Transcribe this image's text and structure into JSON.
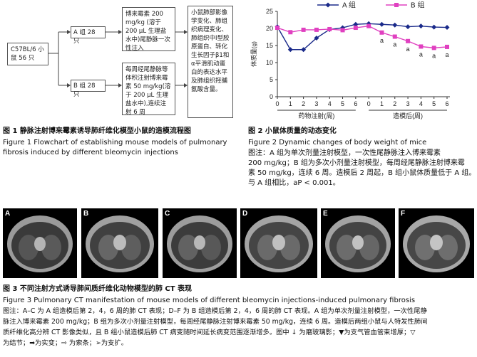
{
  "flowchart": {
    "start": "C57BL/6 小鼠 56 只",
    "group_a": "A 组 28 只",
    "group_b": "B 组 28 只",
    "a_desc": "博来霉素 200 mg/kg (溶于 200 μL 生理盐水中)尾静脉一次性注入",
    "b_desc": "每周经尾静脉等体积注射博来霉素 50 mg/kg(溶于 200 μL 生理盐水中),连续注射 6 周",
    "outcome": "小鼠肺部影像学变化、肺组织病理变化、肺组织中Ⅰ型胶原蛋白、转化生长因子β1和α平滑肌动蛋白的表达水平及肺组织羟脯氨酸含量。"
  },
  "fig1": {
    "cn": "图 1  静脉注射博来霉素诱导肺纤维化模型小鼠的造模流程图",
    "en1": "Figure 1   Flowchart of establishing mouse models of pulmonary",
    "en2": "fibrosis induced by different bleomycin injections"
  },
  "chart_data": {
    "type": "line",
    "x": [
      "0",
      "1",
      "2",
      "3",
      "4",
      "5",
      "6",
      "0",
      "1",
      "2",
      "3",
      "4",
      "5",
      "6"
    ],
    "ylim": [
      0,
      25
    ],
    "yticks": [
      "0",
      "5",
      "10",
      "15",
      "20",
      "25"
    ],
    "ylabel": "体质量(g)",
    "xgroup1": "药物注射(周)",
    "xgroup2": "造模后(周)",
    "series": [
      {
        "name": "A 组",
        "color": "#1a2a8a",
        "marker": "diamond",
        "values": [
          20.5,
          13.8,
          13.8,
          17.2,
          19.7,
          20.2,
          21.2,
          21.4,
          21.2,
          21.0,
          20.5,
          20.7,
          20.4,
          20.3
        ]
      },
      {
        "name": "B 组",
        "color": "#e040c0",
        "marker": "square",
        "values": [
          20.2,
          18.9,
          19.6,
          19.6,
          19.8,
          19.5,
          20.2,
          20.7,
          18.8,
          17.6,
          16.3,
          14.7,
          14.3,
          14.6
        ]
      }
    ],
    "annotations": [
      "a",
      "a",
      "a",
      "a",
      "a",
      "a"
    ],
    "annotation_x_index": [
      8,
      9,
      10,
      11,
      12,
      13
    ]
  },
  "fig2": {
    "cn": "图 2  小鼠体质量的动态变化",
    "en": "Figure 2   Dynamic changes of body weight of mice",
    "note1": "图注：A 组为单次剂量注射模型，一次性尾静脉注入博来霉素",
    "note2": "200 mg/kg；B 组为多次小剂量注射模型，每周经尾静脉注射博来霉",
    "note3": "素 50 mg/kg，连续 6 周。造模后 2 周起，B 组小鼠体质量低于 A 组。",
    "note4": "与 A 组相比，aP < 0.001。"
  },
  "ct_panels": [
    "A",
    "B",
    "C",
    "D",
    "E",
    "F"
  ],
  "fig3": {
    "cn": "图 3  不同注射方式诱导肺间质纤维化动物模型的肺 CT 表现",
    "en": "Figure 3   Pulmonary CT manifestation of mouse models of different bleomycin injections-induced pulmonary fibrosis",
    "note1": "图注：A–C 为 A 组造模后第 2，4，6 周的肺 CT 表现；D–F 为 B 组造模后第 2，4，6 周的肺 CT 表现。A 组为单次剂量注射模型，一次性尾静",
    "note2": "脉注入博来霉素 200 mg/kg；B 组为多次小剂量注射模型，每周经尾静脉注射博来霉素 50 mg/kg，连续 6 周。造模后两组小鼠与人特发性肺间",
    "note3": "质纤维化高分辨 CT 影像类似，且 B 组小鼠造模后肺 CT 病变随时间延长病变范围逐渐增多。图中 ↓ 为磨玻璃影；▼为支气管血管束增厚；▽",
    "note4": "为结节；➡为实变；⇨ 为索条；➢为支扩。"
  }
}
